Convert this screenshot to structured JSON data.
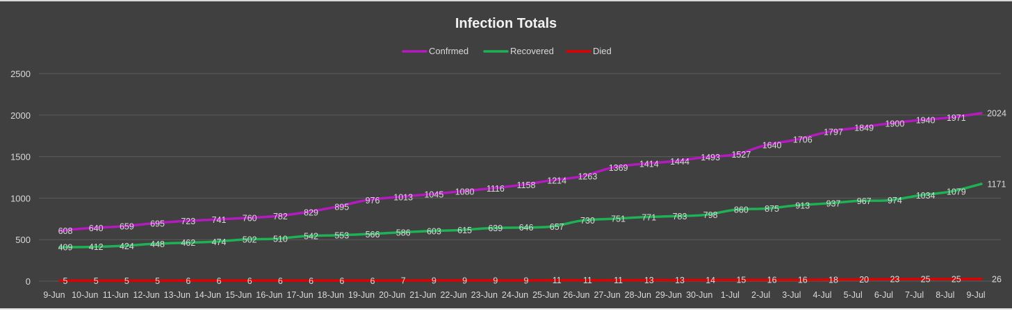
{
  "chart_data": {
    "type": "line",
    "title": "Infection Totals",
    "xlabel": "",
    "ylabel": "",
    "ylim": [
      0,
      2500
    ],
    "yticks": [
      "0",
      "500",
      "1000",
      "1500",
      "2000",
      "2500"
    ],
    "grid": "horizontal",
    "legend_position": "top",
    "categories": [
      "9-Jun",
      "10-Jun",
      "11-Jun",
      "12-Jun",
      "13-Jun",
      "14-Jun",
      "15-Jun",
      "16-Jun",
      "17-Jun",
      "18-Jun",
      "19-Jun",
      "20-Jun",
      "21-Jun",
      "22-Jun",
      "23-Jun",
      "24-Jun",
      "25-Jun",
      "26-Jun",
      "27-Jun",
      "28-Jun",
      "29-Jun",
      "30-Jun",
      "1-Jul",
      "2-Jul",
      "3-Jul",
      "4-Jul",
      "5-Jul",
      "6-Jul",
      "7-Jul",
      "8-Jul",
      "9-Jul"
    ],
    "series": [
      {
        "name": "Confrmed",
        "color": "#b31bbf",
        "values": [
          608,
          640,
          659,
          695,
          723,
          741,
          760,
          782,
          829,
          895,
          976,
          1013,
          1045,
          1080,
          1116,
          1158,
          1214,
          1263,
          1369,
          1414,
          1444,
          1493,
          1527,
          1640,
          1706,
          1797,
          1849,
          1900,
          1940,
          1971,
          2024
        ]
      },
      {
        "name": "Recovered",
        "color": "#1fb155",
        "values": [
          409,
          412,
          424,
          448,
          462,
          474,
          502,
          510,
          542,
          553,
          566,
          586,
          603,
          615,
          639,
          646,
          657,
          730,
          751,
          771,
          783,
          798,
          860,
          875,
          913,
          937,
          967,
          974,
          1034,
          1079,
          1171
        ]
      },
      {
        "name": "Died",
        "color": "#e00000",
        "values": [
          5,
          5,
          5,
          5,
          6,
          6,
          6,
          6,
          6,
          6,
          6,
          7,
          9,
          9,
          9,
          9,
          11,
          11,
          11,
          13,
          13,
          14,
          15,
          16,
          16,
          18,
          20,
          23,
          25,
          25,
          26
        ]
      }
    ]
  }
}
